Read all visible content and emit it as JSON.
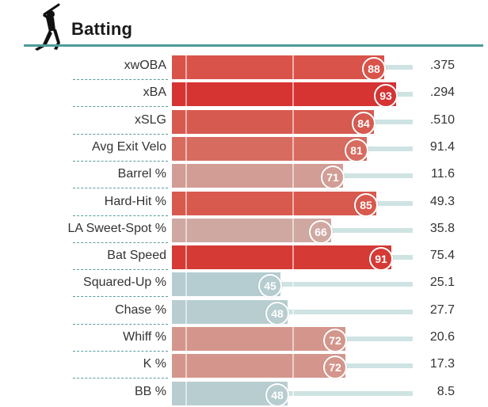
{
  "section": {
    "title": "Batting",
    "icon": "batter-silhouette-icon"
  },
  "colors": {
    "accent": "#4d9c9a",
    "track": "#cfe3e3"
  },
  "metrics": [
    {
      "label": "xwOBA",
      "percentile": "88",
      "value": ".375",
      "color": "#d9534a"
    },
    {
      "label": "xBA",
      "percentile": "93",
      "value": ".294",
      "color": "#d63333"
    },
    {
      "label": "xSLG",
      "percentile": "84",
      "value": ".510",
      "color": "#d75a50"
    },
    {
      "label": "Avg Exit Velo",
      "percentile": "81",
      "value": "91.4",
      "color": "#d86b60"
    },
    {
      "label": "Barrel %",
      "percentile": "71",
      "value": "11.6",
      "color": "#d19d94"
    },
    {
      "label": "Hard-Hit %",
      "percentile": "85",
      "value": "49.3",
      "color": "#d8594d"
    },
    {
      "label": "LA Sweet-Spot %",
      "percentile": "66",
      "value": "35.8",
      "color": "#cfa8a2"
    },
    {
      "label": "Bat Speed",
      "percentile": "91",
      "value": "75.4",
      "color": "#d53a35"
    },
    {
      "label": "Squared-Up %",
      "percentile": "45",
      "value": "25.1",
      "color": "#b5cdd0"
    },
    {
      "label": "Chase %",
      "percentile": "48",
      "value": "27.7",
      "color": "#b8cdd0"
    },
    {
      "label": "Whiff %",
      "percentile": "72",
      "value": "20.6",
      "color": "#d4968c"
    },
    {
      "label": "K %",
      "percentile": "72",
      "value": "17.3",
      "color": "#d4968c"
    },
    {
      "label": "BB %",
      "percentile": "48",
      "value": "8.5",
      "color": "#b8cdd0"
    }
  ]
}
